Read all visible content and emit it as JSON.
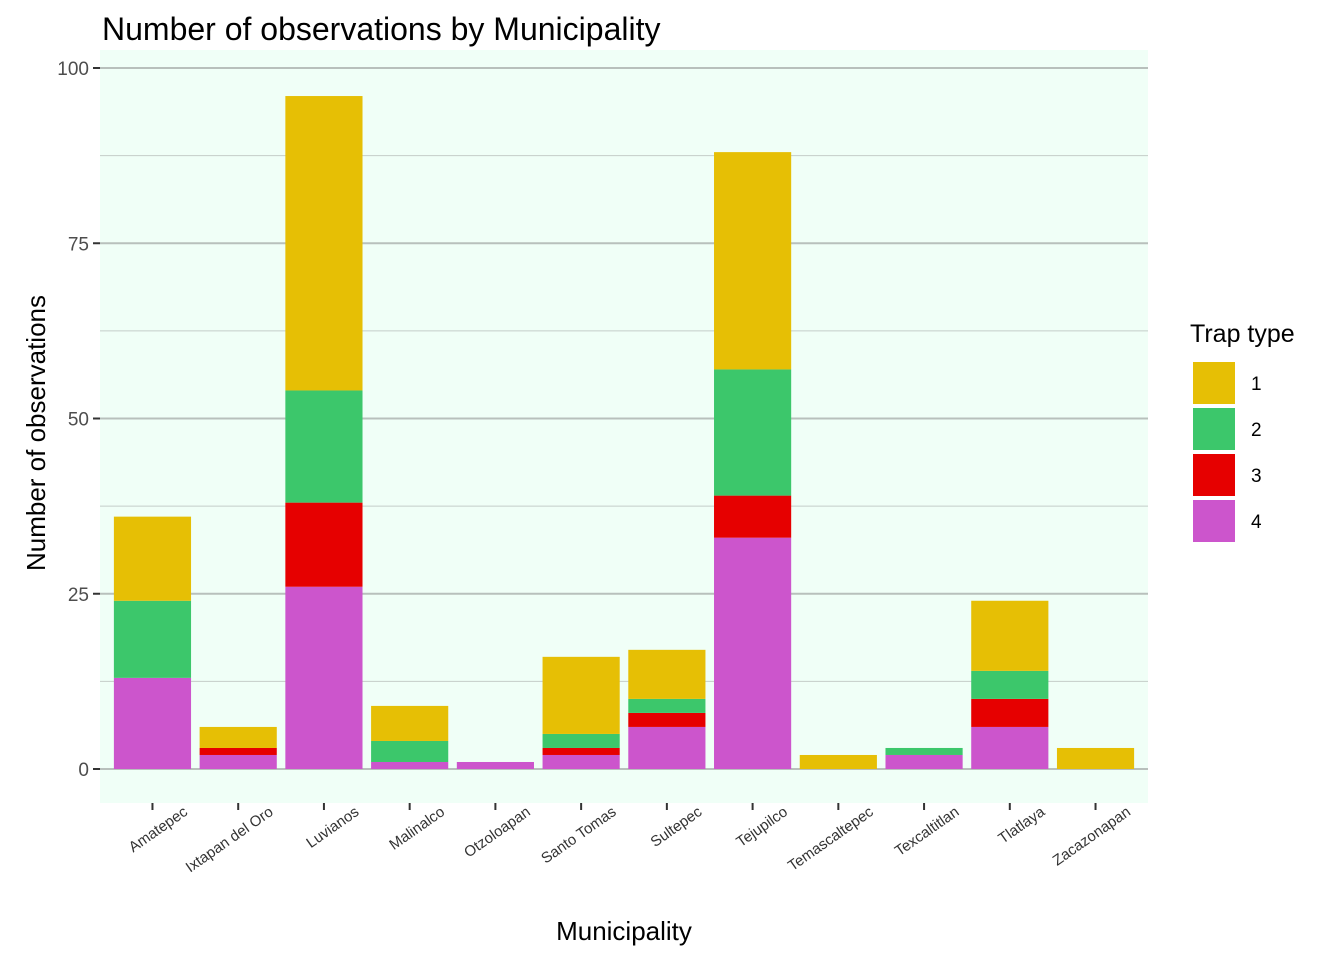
{
  "chart_data": {
    "type": "bar",
    "stacked": true,
    "title": "Number of observations by Municipality",
    "xlabel": "Municipality",
    "ylabel": "Number of observations",
    "ylim": [
      0,
      100
    ],
    "yticks": [
      0,
      25,
      50,
      75,
      100
    ],
    "grid": true,
    "panel_background": "#f0fff7",
    "categories": [
      "Amatepec",
      "Ixtapan del Oro",
      "Luvianos",
      "Malinalco",
      "Otzoloapan",
      "Santo Tomas",
      "Sultepec",
      "Tejupilco",
      "Temascaltepec",
      "Texcaltitlan",
      "Tlatlaya",
      "Zacazonapan"
    ],
    "legend": {
      "title": "Trap type",
      "position": "right"
    },
    "series": [
      {
        "name": "4",
        "color": "#cc55cc",
        "values": [
          13,
          2,
          26,
          1,
          1,
          2,
          6,
          33,
          0,
          2,
          6,
          0
        ]
      },
      {
        "name": "3",
        "color": "#e60000",
        "values": [
          0,
          1,
          12,
          0,
          0,
          1,
          2,
          6,
          0,
          0,
          4,
          0
        ]
      },
      {
        "name": "2",
        "color": "#3cc76b",
        "values": [
          11,
          0,
          16,
          3,
          0,
          2,
          2,
          18,
          0,
          1,
          4,
          0
        ]
      },
      {
        "name": "1",
        "color": "#e6bf05",
        "values": [
          12,
          3,
          42,
          5,
          0,
          11,
          7,
          31,
          2,
          0,
          10,
          3
        ]
      }
    ]
  }
}
